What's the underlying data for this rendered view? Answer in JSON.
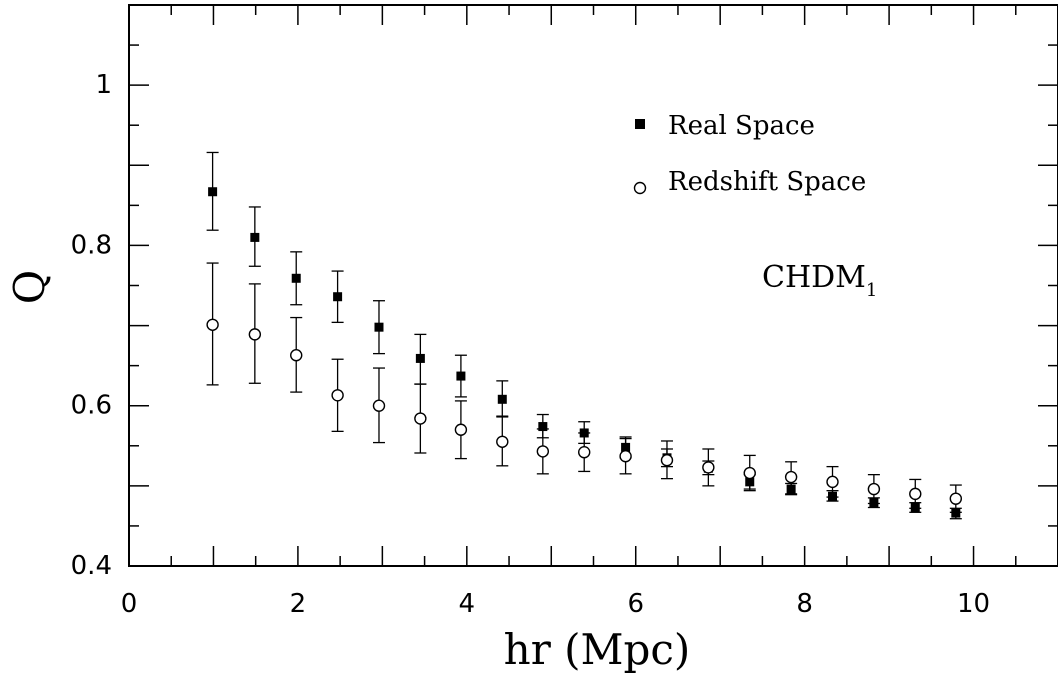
{
  "chart_data": {
    "type": "scatter",
    "title": "",
    "xlabel": "hr (Mpc)",
    "ylabel": "Q",
    "xlim": [
      0,
      11
    ],
    "ylim": [
      0.4,
      1.1
    ],
    "xticks": [
      "0",
      "2",
      "4",
      "6",
      "8",
      "10"
    ],
    "xtick_values": [
      0,
      2,
      4,
      6,
      8,
      10
    ],
    "yticks": [
      "0.4",
      "0.6",
      "0.8",
      "1"
    ],
    "ytick_values": [
      0.4,
      0.6,
      0.8,
      1.0
    ],
    "grid": false,
    "legend": "top-right",
    "annotation": {
      "text": "CHDM",
      "subscript": "1"
    },
    "series": [
      {
        "name": "Real Space",
        "marker": "filled-square",
        "points": [
          {
            "x": 0.99,
            "y": 0.867,
            "lo": 0.819,
            "hi": 0.916
          },
          {
            "x": 1.49,
            "y": 0.81,
            "lo": 0.774,
            "hi": 0.848
          },
          {
            "x": 1.98,
            "y": 0.759,
            "lo": 0.726,
            "hi": 0.792
          },
          {
            "x": 2.47,
            "y": 0.736,
            "lo": 0.704,
            "hi": 0.768
          },
          {
            "x": 2.96,
            "y": 0.698,
            "lo": 0.665,
            "hi": 0.731
          },
          {
            "x": 3.45,
            "y": 0.659,
            "lo": 0.627,
            "hi": 0.689
          },
          {
            "x": 3.93,
            "y": 0.637,
            "lo": 0.611,
            "hi": 0.663
          },
          {
            "x": 4.42,
            "y": 0.608,
            "lo": 0.587,
            "hi": 0.631
          },
          {
            "x": 4.9,
            "y": 0.574,
            "lo": 0.56,
            "hi": 0.589
          },
          {
            "x": 5.39,
            "y": 0.566,
            "lo": 0.553,
            "hi": 0.58
          },
          {
            "x": 5.88,
            "y": 0.548,
            "lo": 0.535,
            "hi": 0.561
          },
          {
            "x": 6.37,
            "y": 0.535,
            "lo": 0.524,
            "hi": 0.546
          },
          {
            "x": 6.86,
            "y": 0.522,
            "lo": 0.514,
            "hi": 0.531
          },
          {
            "x": 7.35,
            "y": 0.505,
            "lo": 0.496,
            "hi": 0.514
          },
          {
            "x": 7.84,
            "y": 0.496,
            "lo": 0.489,
            "hi": 0.503
          },
          {
            "x": 8.33,
            "y": 0.487,
            "lo": 0.481,
            "hi": 0.494
          },
          {
            "x": 8.82,
            "y": 0.479,
            "lo": 0.473,
            "hi": 0.485
          },
          {
            "x": 9.31,
            "y": 0.473,
            "lo": 0.467,
            "hi": 0.479
          },
          {
            "x": 9.79,
            "y": 0.466,
            "lo": 0.459,
            "hi": 0.472
          }
        ]
      },
      {
        "name": "Redshift Space",
        "marker": "open-circle",
        "points": [
          {
            "x": 0.99,
            "y": 0.701,
            "lo": 0.626,
            "hi": 0.778
          },
          {
            "x": 1.49,
            "y": 0.689,
            "lo": 0.628,
            "hi": 0.752
          },
          {
            "x": 1.98,
            "y": 0.663,
            "lo": 0.617,
            "hi": 0.71
          },
          {
            "x": 2.47,
            "y": 0.613,
            "lo": 0.568,
            "hi": 0.658
          },
          {
            "x": 2.96,
            "y": 0.6,
            "lo": 0.554,
            "hi": 0.647
          },
          {
            "x": 3.45,
            "y": 0.584,
            "lo": 0.541,
            "hi": 0.627
          },
          {
            "x": 3.93,
            "y": 0.57,
            "lo": 0.534,
            "hi": 0.606
          },
          {
            "x": 4.42,
            "y": 0.555,
            "lo": 0.525,
            "hi": 0.586
          },
          {
            "x": 4.9,
            "y": 0.543,
            "lo": 0.515,
            "hi": 0.571
          },
          {
            "x": 5.39,
            "y": 0.542,
            "lo": 0.518,
            "hi": 0.566
          },
          {
            "x": 5.88,
            "y": 0.537,
            "lo": 0.515,
            "hi": 0.559
          },
          {
            "x": 6.37,
            "y": 0.532,
            "lo": 0.509,
            "hi": 0.556
          },
          {
            "x": 6.86,
            "y": 0.523,
            "lo": 0.5,
            "hi": 0.546
          },
          {
            "x": 7.35,
            "y": 0.516,
            "lo": 0.494,
            "hi": 0.538
          },
          {
            "x": 7.84,
            "y": 0.511,
            "lo": 0.49,
            "hi": 0.53
          },
          {
            "x": 8.33,
            "y": 0.505,
            "lo": 0.486,
            "hi": 0.524
          },
          {
            "x": 8.82,
            "y": 0.496,
            "lo": 0.478,
            "hi": 0.514
          },
          {
            "x": 9.31,
            "y": 0.49,
            "lo": 0.472,
            "hi": 0.508
          },
          {
            "x": 9.79,
            "y": 0.484,
            "lo": 0.467,
            "hi": 0.501
          }
        ]
      }
    ]
  }
}
